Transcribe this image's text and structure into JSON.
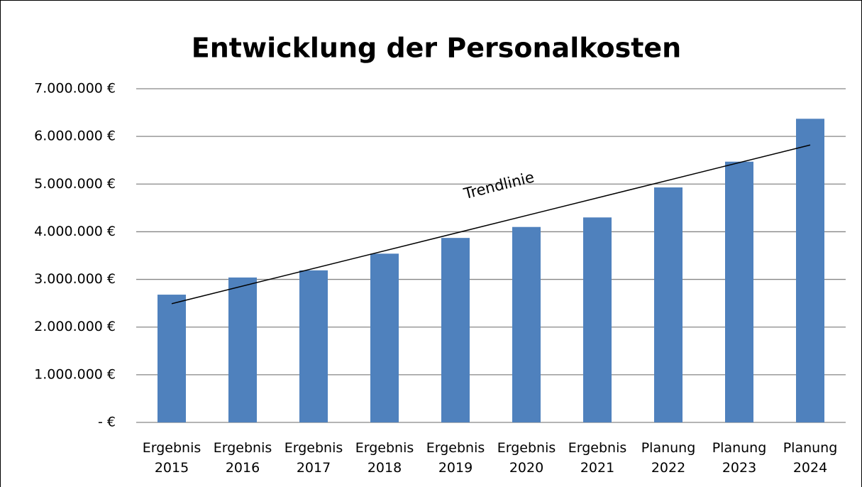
{
  "chart_data": {
    "type": "bar",
    "title": "Entwicklung der Personalkosten",
    "categories": [
      "Ergebnis 2015",
      "Ergebnis 2016",
      "Ergebnis 2017",
      "Ergebnis 2018",
      "Ergebnis 2019",
      "Ergebnis 2020",
      "Ergebnis 2021",
      "Planung 2022",
      "Planung 2023",
      "Planung 2024"
    ],
    "values": [
      2680000,
      3040000,
      3190000,
      3540000,
      3870000,
      4100000,
      4300000,
      4930000,
      5470000,
      6370000
    ],
    "color": "#4f81bd",
    "ylim": [
      0,
      7000000
    ],
    "yticks": [
      {
        "value": 0,
        "label": "-   €"
      },
      {
        "value": 1000000,
        "label": "1.000.000 €"
      },
      {
        "value": 2000000,
        "label": "2.000.000 €"
      },
      {
        "value": 3000000,
        "label": "3.000.000 €"
      },
      {
        "value": 4000000,
        "label": "4.000.000 €"
      },
      {
        "value": 5000000,
        "label": "5.000.000 €"
      },
      {
        "value": 6000000,
        "label": "6.000.000 €"
      },
      {
        "value": 7000000,
        "label": "7.000.000 €"
      }
    ],
    "grid": true,
    "trendline": {
      "label": "Trendlinie",
      "start": 2490000,
      "end": 5820000
    }
  }
}
